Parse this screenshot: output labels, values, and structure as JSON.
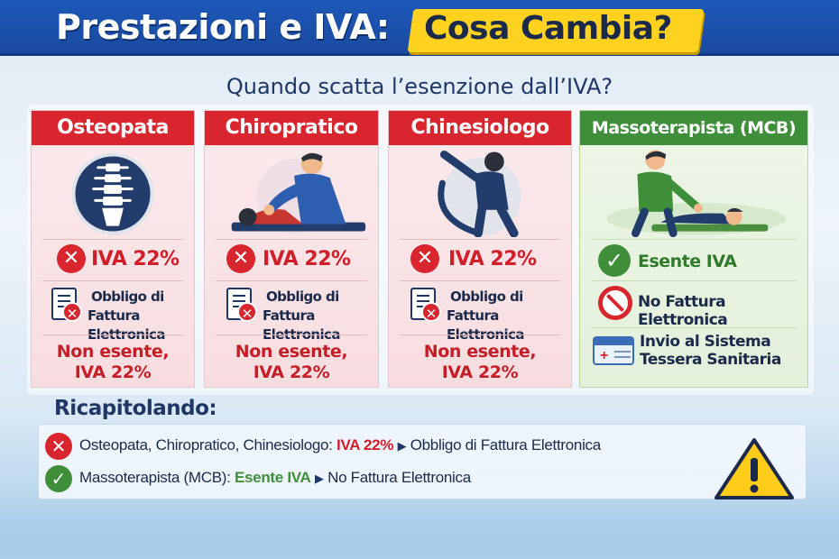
{
  "header": {
    "title": "Prestazioni e IVA:",
    "title_highlight": "Cosa Cambia?"
  },
  "subtitle": "Quando scatta l’esenzione dall’IVA?",
  "cards": [
    {
      "name": "Osteopata",
      "iva": "IVA 22%",
      "obbligo_line1": "Obbligo di",
      "obbligo_line2": "Fattura Elettronica",
      "status_line1": "Non esente,",
      "status_line2": "IVA 22%",
      "icon": "spine-icon"
    },
    {
      "name": "Chiropratico",
      "iva": "IVA 22%",
      "obbligo_line1": "Obbligo di",
      "obbligo_line2": "Fattura Elettronica",
      "status_line1": "Non esente,",
      "status_line2": "IVA 22%",
      "icon": "chiropractor-icon"
    },
    {
      "name": "Chinesiologo",
      "iva": "IVA 22%",
      "obbligo_line1": "Obbligo di",
      "obbligo_line2": "Fattura Elettronica",
      "status_line1": "Non esente,",
      "status_line2": "IVA 22%",
      "icon": "stretching-person-icon"
    },
    {
      "name": "Massoterapista (MCB)",
      "items": [
        "Esente IVA",
        "No Fattura Elettronica",
        "Invio al Sistema",
        "Tessera Sanitaria"
      ],
      "icon": "massage-icon"
    }
  ],
  "recap": {
    "title": "Ricapitolando:",
    "row1": {
      "lead": "Osteopata, Chiropratico, Chinesiologo:",
      "highlight": "IVA 22%",
      "tail": "Obbligo di Fattura Elettronica"
    },
    "row2": {
      "lead": "Massoterapista (MCB):",
      "highlight": "Esente IVA",
      "tail": "No Fattura Elettronica"
    }
  },
  "colors": {
    "header_blue": "#1d58b8",
    "highlight_yellow": "#ffd21f",
    "red": "#d9252e",
    "green": "#3f8f3a",
    "navy": "#1e3766"
  }
}
